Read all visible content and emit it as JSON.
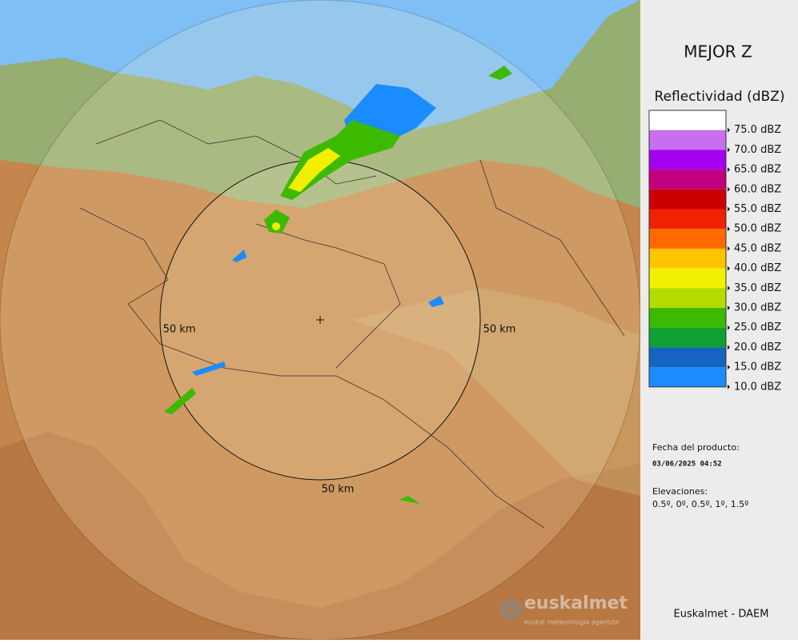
{
  "map": {
    "range_labels": [
      "50 km",
      "50 km",
      "50 km"
    ],
    "logo": {
      "name": "euskalmet",
      "tagline": "euskal meteorologia agentzia"
    }
  },
  "panel": {
    "title": "MEJOR Z",
    "legend_title": "Reflectividad (dBZ)",
    "legend": [
      {
        "label": "75.0 dBZ",
        "color": "#ffffff"
      },
      {
        "label": "70.0 dBZ",
        "color": "#c86ef0"
      },
      {
        "label": "65.0 dBZ",
        "color": "#a400f2"
      },
      {
        "label": "60.0 dBZ",
        "color": "#c0007c"
      },
      {
        "label": "55.0 dBZ",
        "color": "#cc0000"
      },
      {
        "label": "50.0 dBZ",
        "color": "#ee2200"
      },
      {
        "label": "45.0 dBZ",
        "color": "#ff6a00"
      },
      {
        "label": "40.0 dBZ",
        "color": "#ffc400"
      },
      {
        "label": "35.0 dBZ",
        "color": "#f2f000"
      },
      {
        "label": "30.0 dBZ",
        "color": "#b4dc00"
      },
      {
        "label": "25.0 dBZ",
        "color": "#3cba00"
      },
      {
        "label": "20.0 dBZ",
        "color": "#10a032"
      },
      {
        "label": "15.0 dBZ",
        "color": "#1464c0"
      },
      {
        "label": "10.0 dBZ",
        "color": "#1a8cff"
      }
    ],
    "date_label": "Fecha del producto:",
    "date": "03/06/2025 04:52",
    "elev_label": "Elevaciones:",
    "elevations": "0.5º, 0º, 0.5º, 1º, 1.5º",
    "credit": "Euskalmet - DAEM"
  }
}
